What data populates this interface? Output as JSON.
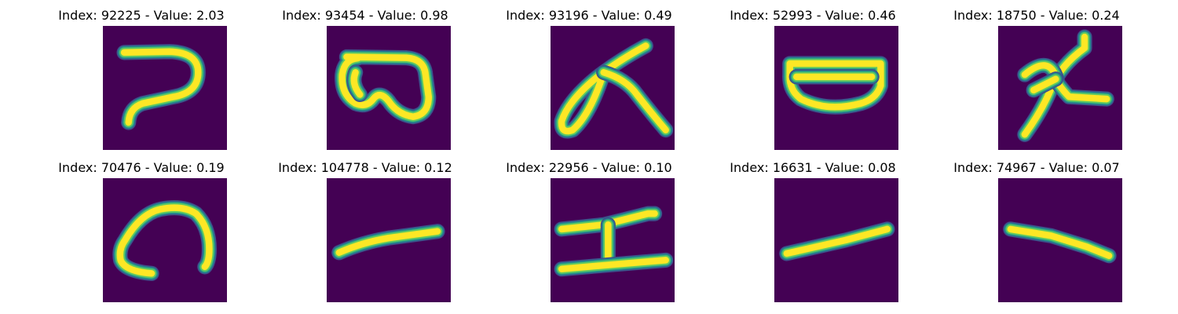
{
  "colors": {
    "background": "#440154",
    "stroke_core": "#fde725",
    "stroke_mid": "#5ec962",
    "stroke_edge": "#21918c",
    "stroke_outer": "#3b528b"
  },
  "panels": [
    {
      "title": "Index: 92225 - Value: 2.03",
      "glyph": "hook"
    },
    {
      "title": "Index: 93454 - Value: 0.98",
      "glyph": "loop-pair"
    },
    {
      "title": "Index: 93196 - Value: 0.49",
      "glyph": "loop-cross"
    },
    {
      "title": "Index: 52993 - Value: 0.46",
      "glyph": "oval"
    },
    {
      "title": "Index: 18750 - Value: 0.24",
      "glyph": "cross-branch"
    },
    {
      "title": "Index: 70476 - Value: 0.19",
      "glyph": "arc"
    },
    {
      "title": "Index: 104778 - Value: 0.12",
      "glyph": "rising-line"
    },
    {
      "title": "Index: 22956 - Value: 0.10",
      "glyph": "i-beam"
    },
    {
      "title": "Index: 16631 - Value: 0.08",
      "glyph": "rising-line-2"
    },
    {
      "title": "Index: 74967 - Value: 0.07",
      "glyph": "falling-line"
    }
  ]
}
